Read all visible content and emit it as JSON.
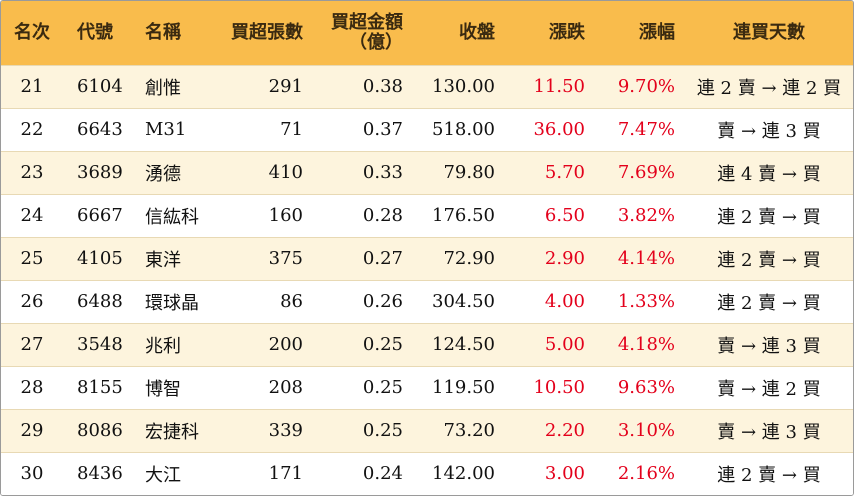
{
  "table": {
    "headers": {
      "rank": "名次",
      "code": "代號",
      "name": "名稱",
      "buy_lots": "買超張數",
      "buy_amount_line1": "買超金額",
      "buy_amount_line2": "（億）",
      "close": "收盤",
      "change": "漲跌",
      "change_pct": "漲幅",
      "streak": "連買天數"
    },
    "rows": [
      {
        "rank": "21",
        "code": "6104",
        "name": "創惟",
        "buy_lots": "291",
        "buy_amount": "0.38",
        "close": "130.00",
        "change": "11.50",
        "change_pct": "9.70%",
        "streak": "連 2 賣 → 連 2 買"
      },
      {
        "rank": "22",
        "code": "6643",
        "name": "M31",
        "buy_lots": "71",
        "buy_amount": "0.37",
        "close": "518.00",
        "change": "36.00",
        "change_pct": "7.47%",
        "streak": "賣 → 連 3 買"
      },
      {
        "rank": "23",
        "code": "3689",
        "name": "湧德",
        "buy_lots": "410",
        "buy_amount": "0.33",
        "close": "79.80",
        "change": "5.70",
        "change_pct": "7.69%",
        "streak": "連 4 賣 → 買"
      },
      {
        "rank": "24",
        "code": "6667",
        "name": "信紘科",
        "buy_lots": "160",
        "buy_amount": "0.28",
        "close": "176.50",
        "change": "6.50",
        "change_pct": "3.82%",
        "streak": "連 2 賣 → 買"
      },
      {
        "rank": "25",
        "code": "4105",
        "name": "東洋",
        "buy_lots": "375",
        "buy_amount": "0.27",
        "close": "72.90",
        "change": "2.90",
        "change_pct": "4.14%",
        "streak": "連 2 賣 → 買"
      },
      {
        "rank": "26",
        "code": "6488",
        "name": "環球晶",
        "buy_lots": "86",
        "buy_amount": "0.26",
        "close": "304.50",
        "change": "4.00",
        "change_pct": "1.33%",
        "streak": "連 2 賣 → 買"
      },
      {
        "rank": "27",
        "code": "3548",
        "name": "兆利",
        "buy_lots": "200",
        "buy_amount": "0.25",
        "close": "124.50",
        "change": "5.00",
        "change_pct": "4.18%",
        "streak": "賣 → 連 3 買"
      },
      {
        "rank": "28",
        "code": "8155",
        "name": "博智",
        "buy_lots": "208",
        "buy_amount": "0.25",
        "close": "119.50",
        "change": "10.50",
        "change_pct": "9.63%",
        "streak": "賣 → 連 2 買"
      },
      {
        "rank": "29",
        "code": "8086",
        "name": "宏捷科",
        "buy_lots": "339",
        "buy_amount": "0.25",
        "close": "73.20",
        "change": "2.20",
        "change_pct": "3.10%",
        "streak": "賣 → 連 3 買"
      },
      {
        "rank": "30",
        "code": "8436",
        "name": "大江",
        "buy_lots": "171",
        "buy_amount": "0.24",
        "close": "142.00",
        "change": "3.00",
        "change_pct": "2.16%",
        "streak": "連 2 賣 → 買"
      }
    ]
  },
  "colors": {
    "header_bg": "#f9bc4c",
    "odd_row_bg": "#fdf4dd",
    "even_row_bg": "#ffffff",
    "up_red": "#e3001b"
  }
}
